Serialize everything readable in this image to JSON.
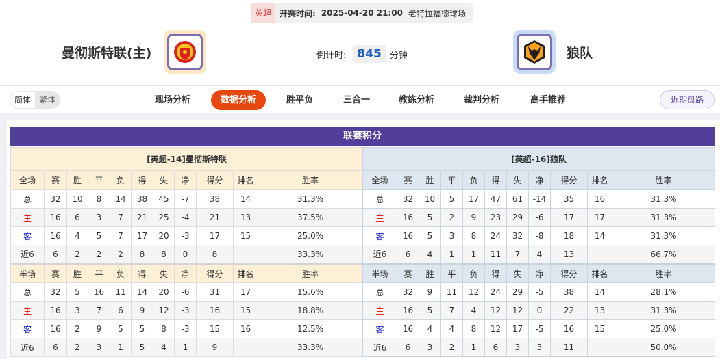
{
  "match": {
    "league": "英超",
    "time_label": "开赛时间:",
    "time": "2025-04-20 21:00",
    "venue": "老特拉福德球场",
    "home": {
      "name": "曼彻斯特联(主)",
      "logo": "manchester-united-crest"
    },
    "away": {
      "name": "狼队",
      "logo": "wolves-crest"
    },
    "countdown_label": "倒计时:",
    "countdown_value": "845",
    "countdown_unit": "分钟"
  },
  "nav": {
    "lang": [
      "简体",
      "繁体"
    ],
    "tabs": [
      "现场分析",
      "数据分析",
      "胜平负",
      "三合一",
      "教练分析",
      "裁判分析",
      "高手推荐"
    ],
    "active_tab": "数据分析",
    "recent": "近期盘路"
  },
  "colors": {
    "accent": "#e9470e",
    "title_bar": "#523e9b",
    "home_label": "#e00000",
    "away_label": "#1a22d4"
  },
  "standings": {
    "title": "联赛积分",
    "tables": [
      {
        "team": "[英超-14]曼彻斯特联",
        "full": {
          "headers": [
            "全场",
            "赛",
            "胜",
            "平",
            "负",
            "得",
            "失",
            "净",
            "得分",
            "排名",
            "胜率"
          ],
          "rows": [
            [
              "总",
              "32",
              "10",
              "8",
              "14",
              "38",
              "45",
              "-7",
              "38",
              "14",
              "31.3%"
            ],
            [
              "主",
              "16",
              "6",
              "3",
              "7",
              "21",
              "25",
              "-4",
              "21",
              "13",
              "37.5%"
            ],
            [
              "客",
              "16",
              "4",
              "5",
              "7",
              "17",
              "20",
              "-3",
              "17",
              "15",
              "25.0%"
            ],
            [
              "近6",
              "6",
              "2",
              "2",
              "2",
              "8",
              "8",
              "0",
              "8",
              "",
              "33.3%"
            ]
          ]
        },
        "half": {
          "headers": [
            "半场",
            "赛",
            "胜",
            "平",
            "负",
            "得",
            "失",
            "净",
            "得分",
            "排名",
            "胜率"
          ],
          "rows": [
            [
              "总",
              "32",
              "5",
              "16",
              "11",
              "14",
              "20",
              "-6",
              "31",
              "17",
              "15.6%"
            ],
            [
              "主",
              "16",
              "3",
              "7",
              "6",
              "9",
              "12",
              "-3",
              "16",
              "15",
              "18.8%"
            ],
            [
              "客",
              "16",
              "2",
              "9",
              "5",
              "5",
              "8",
              "-3",
              "15",
              "16",
              "12.5%"
            ],
            [
              "近6",
              "6",
              "2",
              "3",
              "1",
              "5",
              "4",
              "1",
              "9",
              "",
              "33.3%"
            ]
          ]
        }
      },
      {
        "team": "[英超-16]狼队",
        "full": {
          "headers": [
            "全场",
            "赛",
            "胜",
            "平",
            "负",
            "得",
            "失",
            "净",
            "得分",
            "排名",
            "胜率"
          ],
          "rows": [
            [
              "总",
              "32",
              "10",
              "5",
              "17",
              "47",
              "61",
              "-14",
              "35",
              "16",
              "31.3%"
            ],
            [
              "主",
              "16",
              "5",
              "2",
              "9",
              "23",
              "29",
              "-6",
              "17",
              "17",
              "31.3%"
            ],
            [
              "客",
              "16",
              "5",
              "3",
              "8",
              "24",
              "32",
              "-8",
              "18",
              "14",
              "31.3%"
            ],
            [
              "近6",
              "6",
              "4",
              "1",
              "1",
              "11",
              "7",
              "4",
              "13",
              "",
              "66.7%"
            ]
          ]
        },
        "half": {
          "headers": [
            "半场",
            "赛",
            "胜",
            "平",
            "负",
            "得",
            "失",
            "净",
            "得分",
            "排名",
            "胜率"
          ],
          "rows": [
            [
              "总",
              "32",
              "9",
              "11",
              "12",
              "24",
              "29",
              "-5",
              "38",
              "14",
              "28.1%"
            ],
            [
              "主",
              "16",
              "5",
              "7",
              "4",
              "12",
              "12",
              "0",
              "22",
              "13",
              "31.3%"
            ],
            [
              "客",
              "16",
              "4",
              "4",
              "8",
              "12",
              "17",
              "-5",
              "16",
              "15",
              "25.0%"
            ],
            [
              "近6",
              "6",
              "3",
              "2",
              "1",
              "6",
              "3",
              "3",
              "11",
              "",
              "50.0%"
            ]
          ]
        }
      }
    ]
  }
}
